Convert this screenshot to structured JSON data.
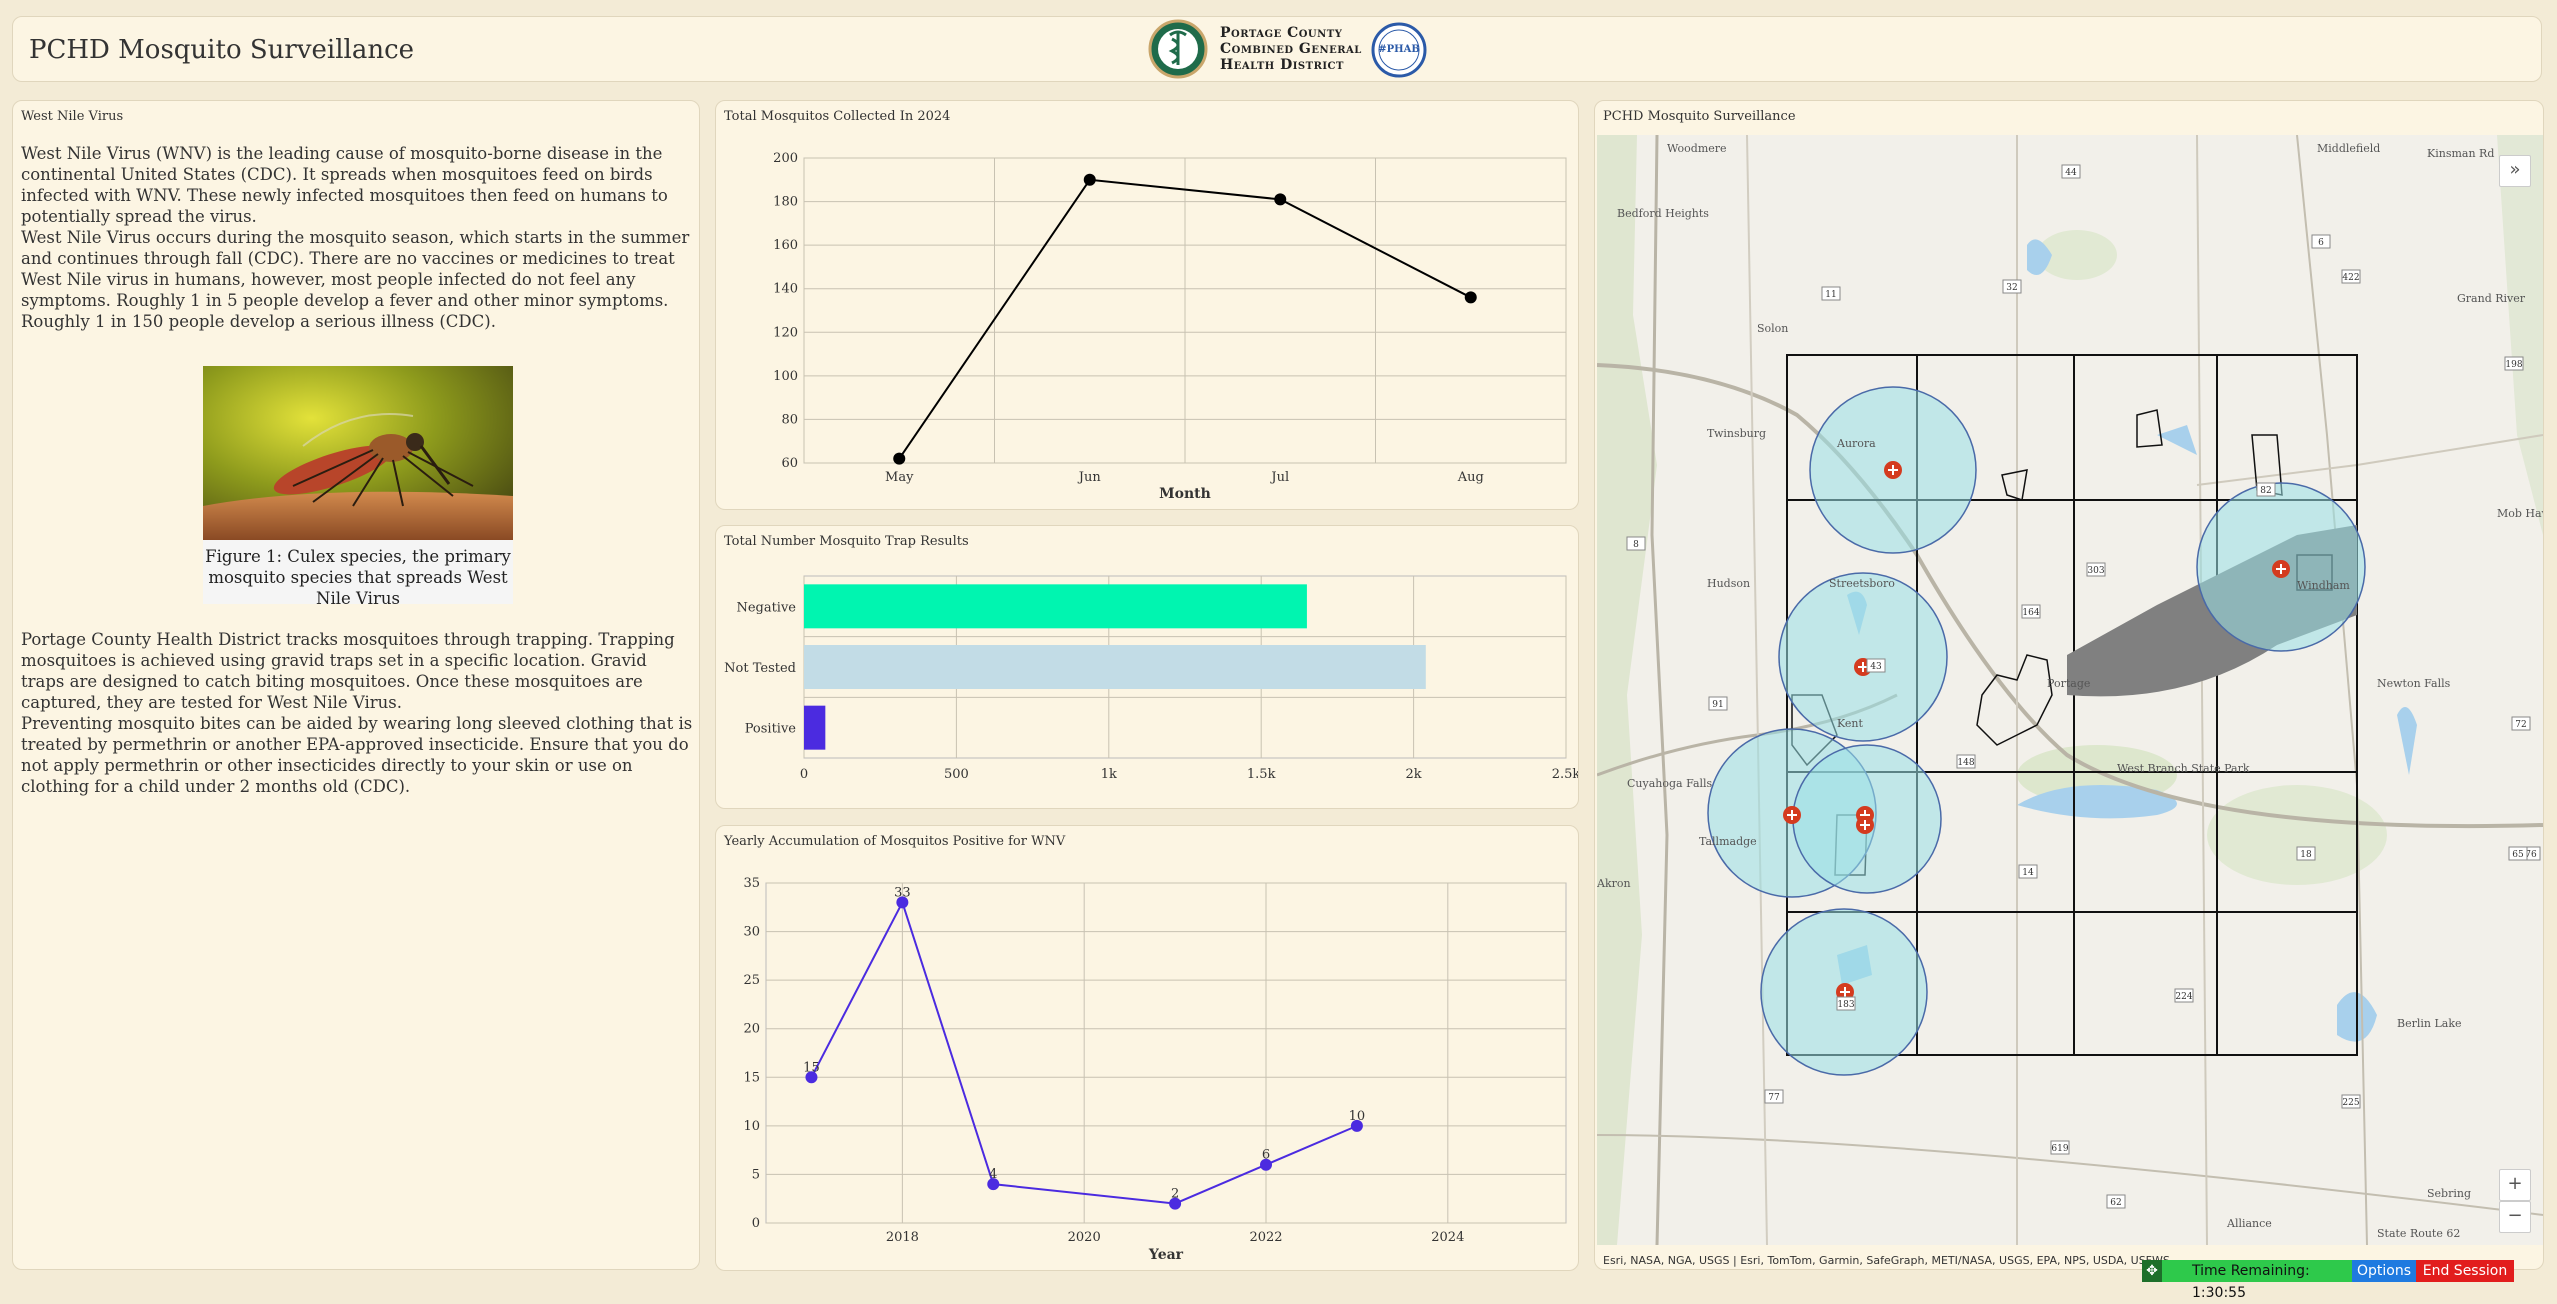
{
  "header": {
    "title": "PCHD Mosquito Surveillance",
    "org_line1": "Portage County",
    "org_line2": "Combined General",
    "org_line3": "Health District",
    "badge": "#PHAB"
  },
  "left": {
    "title": "West Nile Virus",
    "para1": "West Nile Virus (WNV) is the leading cause of mosquito-borne disease in the continental United States (CDC). It spreads when mosquitoes feed on birds infected with WNV. These newly infected mosquitoes then feed on humans to potentially spread the virus.",
    "para2": "West Nile Virus occurs during the mosquito season, which starts in the summer and continues through fall (CDC). There are no vaccines or medicines to treat West Nile virus in humans, however, most people infected do not feel any symptoms. Roughly 1 in 5 people develop a fever and other minor symptoms. Roughly 1 in 150 people develop a serious illness (CDC).",
    "caption": "Figure 1: Culex species, the primary mosquito species that spreads West Nile Virus",
    "para3": "Portage County Health District tracks mosquitoes through trapping. Trapping mosquitoes is achieved using gravid traps set in a specific location. Gravid traps are designed to catch biting mosquitoes. Once these mosquitoes are captured, they are tested for West Nile Virus.",
    "para4": "Preventing mosquito bites can be aided by wearing long sleeved clothing that is treated by permethrin or another EPA-approved insecticide. Ensure that you do not apply permethrin or other insecticides directly to your skin or use on clothing for a child under 2 months old (CDC)."
  },
  "chart_data": [
    {
      "type": "line",
      "title": "Total Mosquitos Collected In 2024",
      "xlabel": "Month",
      "ylabel": "",
      "categories": [
        "May",
        "Jun",
        "Jul",
        "Aug"
      ],
      "values": [
        62,
        190,
        181,
        136
      ],
      "ylim": [
        60,
        200
      ],
      "yticks": [
        60,
        80,
        100,
        120,
        140,
        160,
        180,
        200
      ],
      "color": "#000000",
      "grid": true
    },
    {
      "type": "bar",
      "orientation": "horizontal",
      "title": "Total Number Mosquito Trap Results",
      "categories": [
        "Negative",
        "Not Tested",
        "Positive"
      ],
      "values": [
        1650,
        2040,
        70
      ],
      "colors": [
        "#00f5b0",
        "#c2dce6",
        "#4b2be0"
      ],
      "xlim": [
        0,
        2500
      ],
      "xticks": [
        "0",
        "500",
        "1k",
        "1.5k",
        "2k",
        "2.5k"
      ],
      "grid": true
    },
    {
      "type": "line",
      "title": "Yearly Accumulation of Mosquitos Positive for WNV",
      "xlabel": "Year",
      "ylabel": "",
      "x": [
        2017,
        2018,
        2019,
        2021,
        2022,
        2023
      ],
      "values": [
        15,
        33,
        4,
        2,
        6,
        10
      ],
      "labels": [
        "15",
        "33",
        "4",
        "2",
        "6",
        "10"
      ],
      "xticks": [
        2018,
        2020,
        2022,
        2024
      ],
      "ylim": [
        0,
        35
      ],
      "yticks": [
        0,
        5,
        10,
        15,
        20,
        25,
        30,
        35
      ],
      "color": "#4b2be0",
      "grid": true
    }
  ],
  "map": {
    "title": "PCHD Mosquito Surveillance",
    "attribution": "Esri, NASA, NGA, USGS | Esri, TomTom, Garmin, SafeGraph, METI/NASA, USGS, EPA, NPS, USDA, USFWS",
    "labels": [
      {
        "text": "Woodmere"
      },
      {
        "text": "Middlefield"
      },
      {
        "text": "Kinsman Rd"
      },
      {
        "text": "Bedford Heights"
      },
      {
        "text": "Solon"
      },
      {
        "text": "Twinsburg"
      },
      {
        "text": "Aurora"
      },
      {
        "text": "Hudson"
      },
      {
        "text": "Streetsboro"
      },
      {
        "text": "Windham"
      },
      {
        "text": "Newton Falls"
      },
      {
        "text": "Kent"
      },
      {
        "text": "Cuyahoga Falls"
      },
      {
        "text": "Tallmadge"
      },
      {
        "text": "West Branch State Park"
      },
      {
        "text": "Sebring"
      },
      {
        "text": "Alliance"
      },
      {
        "text": "Akron"
      },
      {
        "text": "Mob Haven"
      },
      {
        "text": "Grand River"
      },
      {
        "text": "Berlin Lake"
      },
      {
        "text": "Portage"
      },
      {
        "text": "State Route 62"
      }
    ],
    "routes": [
      "44",
      "422",
      "6",
      "32",
      "11",
      "198",
      "82",
      "8",
      "303",
      "43",
      "164",
      "91",
      "148",
      "72",
      "14",
      "18",
      "76",
      "65",
      "224",
      "619",
      "77",
      "62",
      "183",
      "225"
    ],
    "zoom_in": "+",
    "zoom_out": "−",
    "expand": "»"
  },
  "session": {
    "drag": "✥",
    "time_remaining": "Time Remaining: 1:30:55",
    "options": "Options",
    "end": "End Session"
  }
}
